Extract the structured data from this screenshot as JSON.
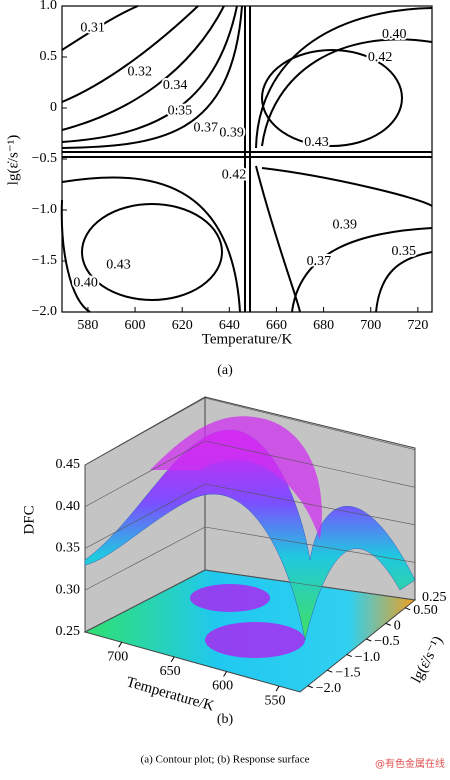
{
  "chart_data": [
    {
      "type": "contour",
      "xlabel": "Temperature/K",
      "ylabel": "lg(ε̇/s⁻¹)",
      "caption": "(a)",
      "xlim": [
        569,
        726
      ],
      "xticks": [
        580,
        600,
        620,
        640,
        660,
        680,
        700,
        720
      ],
      "ylim": [
        -2,
        1
      ],
      "yticks": [
        {
          "value": 1,
          "label": "1.0"
        },
        0.5,
        0,
        {
          "value": -0.5,
          "label": "−0.5"
        },
        {
          "value": -1,
          "label": "−1.0"
        },
        {
          "value": -1.5,
          "label": "−1.5"
        },
        {
          "value": -2,
          "label": "−2.0"
        }
      ],
      "contour_labels": [
        {
          "value": 0.31,
          "x": 582,
          "y": 0.78
        },
        {
          "value": 0.32,
          "x": 602,
          "y": 0.35
        },
        {
          "value": 0.34,
          "x": 617,
          "y": 0.22
        },
        {
          "value": 0.35,
          "x": 619,
          "y": -0.03
        },
        {
          "value": 0.37,
          "x": 630,
          "y": -0.2
        },
        {
          "value": 0.39,
          "x": 641,
          "y": -0.25
        },
        {
          "value": 0.4,
          "label": "0.40",
          "x": 710,
          "y": 0.72
        },
        {
          "value": 0.42,
          "x": 704,
          "y": 0.49
        },
        {
          "value": 0.43,
          "x": 677,
          "y": -0.34
        },
        {
          "value": 0.42,
          "x": 642,
          "y": -0.66
        },
        {
          "value": 0.39,
          "x": 689,
          "y": -1.15
        },
        {
          "value": 0.43,
          "x": 593,
          "y": -1.54
        },
        {
          "value": 0.4,
          "label": "0.40",
          "x": 579,
          "y": -1.72
        },
        {
          "value": 0.37,
          "x": 678,
          "y": -1.51
        },
        {
          "value": 0.35,
          "x": 714,
          "y": -1.41
        }
      ]
    },
    {
      "type": "surface",
      "zlabel": "DFC",
      "xlabel": "Temperature/K",
      "ylabel": "lg(ε̇/s⁻¹)",
      "caption": "(b)",
      "zlim": [
        0.25,
        0.45
      ],
      "zticks": [
        0.25,
        {
          "value": 0.3,
          "label": "0.30"
        },
        0.35,
        {
          "value": 0.4,
          "label": "0.40"
        },
        0.45
      ],
      "xlim": [
        735,
        530
      ],
      "xticks": [
        700,
        650,
        600,
        550
      ],
      "ylim": [
        -2.2,
        0.75
      ],
      "yticks": [
        {
          "value": -2,
          "label": "−2.0"
        },
        {
          "value": -1.5,
          "label": "−1.5"
        },
        {
          "value": -1,
          "label": "−1.0"
        },
        {
          "value": -0.5,
          "label": "−0.5"
        },
        0,
        {
          "value": 0.5,
          "label": "0.50"
        }
      ],
      "corner_label": "0.25"
    }
  ],
  "caption": "(a) Contour plot; (b) Response surface",
  "watermark": "@有色金属在线"
}
